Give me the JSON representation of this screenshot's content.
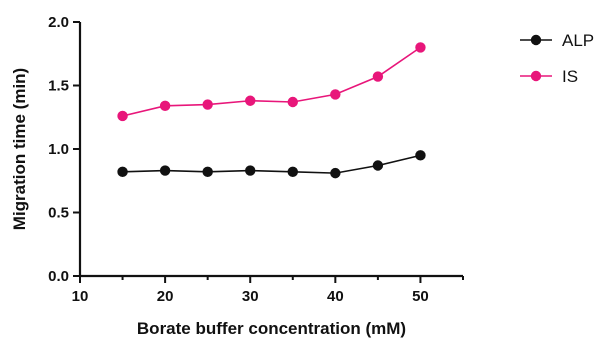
{
  "chart_data": {
    "type": "line",
    "xlabel": "Borate buffer concentration (mM)",
    "ylabel": "Migration time (min)",
    "xlim": [
      10,
      55
    ],
    "ylim": [
      0.0,
      2.0
    ],
    "x_ticks": [
      10,
      20,
      30,
      40,
      50
    ],
    "x_tick_labels": [
      "10",
      "20",
      "30",
      "40",
      "50"
    ],
    "y_ticks": [
      0.0,
      0.5,
      1.0,
      1.5,
      2.0
    ],
    "y_tick_labels": [
      "0.0",
      "0.5",
      "1.0",
      "1.5",
      "2.0"
    ],
    "x": [
      15,
      20,
      25,
      30,
      35,
      40,
      45,
      50
    ],
    "series": [
      {
        "name": "ALP",
        "color": "#111111",
        "values": [
          0.82,
          0.83,
          0.82,
          0.83,
          0.82,
          0.81,
          0.87,
          0.95
        ]
      },
      {
        "name": "IS",
        "color": "#e8167a",
        "values": [
          1.26,
          1.34,
          1.35,
          1.38,
          1.37,
          1.43,
          1.57,
          1.8
        ]
      }
    ],
    "grid": false,
    "legend_position": "top-right"
  }
}
